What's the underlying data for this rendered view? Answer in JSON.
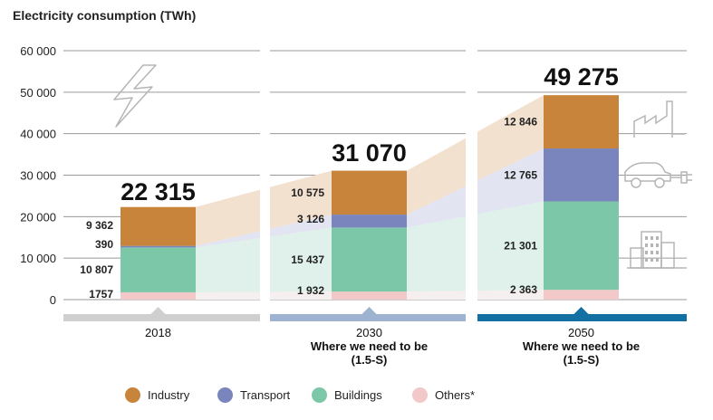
{
  "chart_data": {
    "type": "bar",
    "stacked": true,
    "title": "Electricity consumption (TWh)",
    "ylim": [
      0,
      60000
    ],
    "yticks": [
      "60 000",
      "50 000",
      "40 000",
      "30 000",
      "20 000",
      "10 000",
      "0"
    ],
    "ytick_values": [
      60000,
      50000,
      40000,
      30000,
      20000,
      10000,
      0
    ],
    "categories": [
      "2018",
      "2030",
      "2050"
    ],
    "category_subtitles": [
      "",
      "Where we need to be",
      "Where we need to be"
    ],
    "category_subtitles2": [
      "",
      "(1.5-S)",
      "(1.5-S)"
    ],
    "totals": [
      22315,
      31070,
      49275
    ],
    "total_labels": [
      "22 315",
      "31 070",
      "49 275"
    ],
    "series": [
      {
        "name": "Others*",
        "color": "#f2c9c8",
        "values": [
          1757,
          1932,
          2363
        ],
        "labels": [
          "1757",
          "1 932",
          "2 363"
        ]
      },
      {
        "name": "Buildings",
        "color": "#7dc7a9",
        "values": [
          10807,
          15437,
          21301
        ],
        "labels": [
          "10 807",
          "15 437",
          "21 301"
        ]
      },
      {
        "name": "Transport",
        "color": "#7a85bd",
        "values": [
          390,
          3126,
          12765
        ],
        "labels": [
          "390",
          "3 126",
          "12 765"
        ]
      },
      {
        "name": "Industry",
        "color": "#c8843a",
        "values": [
          9362,
          10575,
          12846
        ],
        "labels": [
          "9 362",
          "10 575",
          "12 846"
        ]
      }
    ],
    "legend_order": [
      "Industry",
      "Transport",
      "Buildings",
      "Others*"
    ],
    "band_colors": [
      "#cfcfcf",
      "#9eb3d0",
      "#1271a2"
    ],
    "grid": true
  }
}
